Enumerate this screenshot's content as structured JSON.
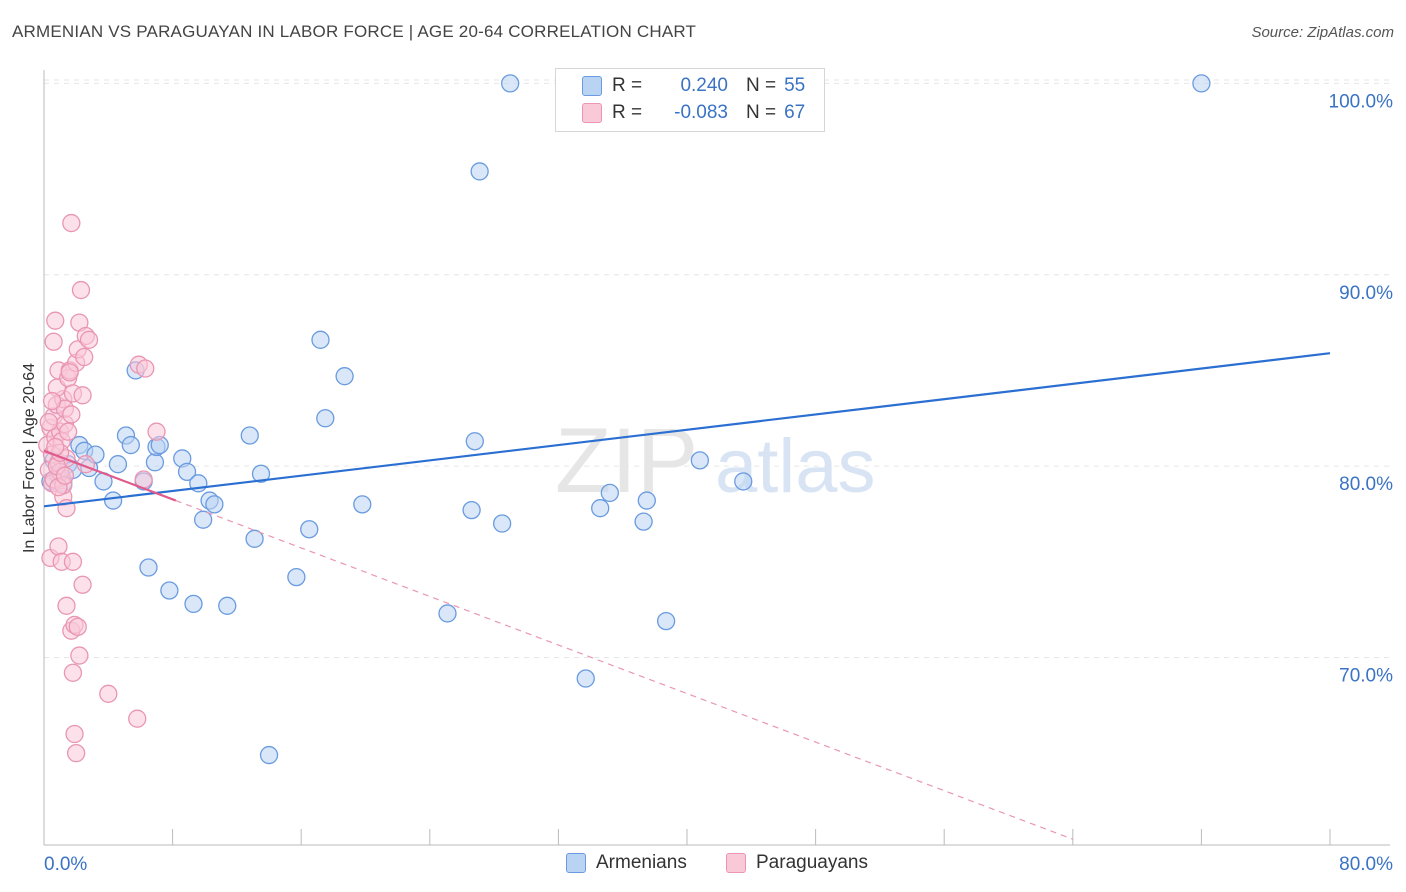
{
  "title": "ARMENIAN VS PARAGUAYAN IN LABOR FORCE | AGE 20-64 CORRELATION CHART",
  "source": "Source: ZipAtlas.com",
  "watermark": {
    "zip": "ZIP",
    "atlas": "atlas"
  },
  "legend": {
    "r_label": "R =",
    "n_label": "N =",
    "armenians": {
      "r": "0.240",
      "n": "55"
    },
    "paraguayans": {
      "r": "-0.083",
      "n": "67"
    }
  },
  "bottom_legend": {
    "armenians": "Armenians",
    "paraguayans": "Paraguayans"
  },
  "colors": {
    "blue_fill": "#b9d4f3",
    "blue_stroke": "#6a9be0",
    "blue_line": "#2a6fd1",
    "pink_fill": "#f9c9d8",
    "pink_stroke": "#e996b3",
    "pink_line": "#e05a8c",
    "tick_text": "#3a73c4",
    "grid": "#e6e6e6"
  },
  "chart_data": {
    "type": "scatter",
    "title": "ARMENIAN VS PARAGUAYAN IN LABOR FORCE | AGE 20-64 CORRELATION CHART",
    "xlabel": "",
    "ylabel": "In Labor Force | Age 20-64",
    "xlim": [
      0,
      80
    ],
    "ylim": [
      60.2,
      100.7
    ],
    "x_tick_labels": [
      "0.0%",
      "80.0%"
    ],
    "y_ticks": [
      70,
      80,
      90,
      100
    ],
    "y_tick_labels": [
      "70.0%",
      "80.0%",
      "90.0%",
      "100.0%"
    ],
    "legend_position": "top-center",
    "series": [
      {
        "name": "Armenians",
        "r": 0.24,
        "n": 55,
        "trend": {
          "x": [
            0,
            80
          ],
          "y": [
            77.9,
            85.9
          ]
        },
        "points": [
          [
            0.4,
            79.2
          ],
          [
            0.6,
            80.3
          ],
          [
            0.9,
            79.5
          ],
          [
            1.2,
            79.1
          ],
          [
            1.5,
            80.1
          ],
          [
            2.2,
            81.1
          ],
          [
            2.5,
            80.8
          ],
          [
            2.8,
            79.9
          ],
          [
            3.2,
            80.6
          ],
          [
            3.7,
            79.2
          ],
          [
            4.3,
            78.2
          ],
          [
            4.6,
            80.1
          ],
          [
            5.1,
            81.6
          ],
          [
            5.4,
            81.1
          ],
          [
            5.7,
            85.0
          ],
          [
            6.2,
            79.2
          ],
          [
            6.5,
            74.7
          ],
          [
            6.9,
            80.2
          ],
          [
            7.0,
            81.0
          ],
          [
            7.2,
            81.1
          ],
          [
            7.8,
            73.5
          ],
          [
            8.6,
            80.4
          ],
          [
            8.9,
            79.7
          ],
          [
            9.3,
            72.8
          ],
          [
            9.6,
            79.1
          ],
          [
            9.9,
            77.2
          ],
          [
            10.3,
            78.2
          ],
          [
            10.6,
            78.0
          ],
          [
            11.4,
            72.7
          ],
          [
            12.8,
            81.6
          ],
          [
            13.1,
            76.2
          ],
          [
            13.5,
            79.6
          ],
          [
            14.0,
            64.9
          ],
          [
            15.7,
            74.2
          ],
          [
            16.5,
            76.7
          ],
          [
            17.2,
            86.6
          ],
          [
            17.5,
            82.5
          ],
          [
            18.7,
            84.7
          ],
          [
            19.8,
            78.0
          ],
          [
            25.1,
            72.3
          ],
          [
            26.6,
            77.7
          ],
          [
            26.8,
            81.3
          ],
          [
            27.1,
            95.4
          ],
          [
            28.5,
            77.0
          ],
          [
            29.0,
            100.0
          ],
          [
            33.7,
            68.9
          ],
          [
            34.6,
            77.8
          ],
          [
            35.2,
            78.6
          ],
          [
            37.3,
            77.1
          ],
          [
            37.5,
            78.2
          ],
          [
            38.7,
            71.9
          ],
          [
            40.8,
            80.3
          ],
          [
            43.5,
            79.2
          ],
          [
            72.0,
            100.0
          ],
          [
            1.8,
            79.8
          ]
        ]
      },
      {
        "name": "Paraguayans",
        "r": -0.083,
        "n": 67,
        "trend_solid": {
          "x": [
            0,
            8.2
          ],
          "y": [
            80.8,
            78.2
          ]
        },
        "trend_dashed": {
          "x": [
            8.2,
            64.0
          ],
          "y": [
            78.2,
            60.5
          ]
        },
        "points": [
          [
            0.2,
            81.1
          ],
          [
            0.3,
            79.8
          ],
          [
            0.4,
            82.0
          ],
          [
            0.5,
            80.6
          ],
          [
            0.6,
            82.6
          ],
          [
            0.7,
            81.5
          ],
          [
            0.8,
            83.2
          ],
          [
            0.9,
            80.2
          ],
          [
            1.0,
            81.8
          ],
          [
            1.1,
            79.4
          ],
          [
            1.2,
            83.5
          ],
          [
            1.3,
            82.2
          ],
          [
            1.4,
            80.4
          ],
          [
            0.5,
            79.1
          ],
          [
            0.6,
            86.5
          ],
          [
            0.7,
            87.6
          ],
          [
            0.8,
            84.1
          ],
          [
            0.9,
            85.0
          ],
          [
            1.0,
            79.7
          ],
          [
            1.1,
            81.3
          ],
          [
            1.2,
            78.4
          ],
          [
            1.3,
            83.0
          ],
          [
            1.4,
            77.8
          ],
          [
            1.5,
            84.6
          ],
          [
            1.6,
            85.0
          ],
          [
            1.7,
            82.7
          ],
          [
            1.8,
            83.8
          ],
          [
            2.0,
            85.4
          ],
          [
            2.1,
            86.1
          ],
          [
            2.2,
            87.5
          ],
          [
            2.3,
            89.2
          ],
          [
            2.4,
            83.7
          ],
          [
            2.5,
            85.7
          ],
          [
            2.6,
            86.8
          ],
          [
            2.8,
            86.6
          ],
          [
            1.7,
            92.7
          ],
          [
            0.4,
            75.2
          ],
          [
            0.9,
            75.8
          ],
          [
            1.1,
            75.0
          ],
          [
            1.4,
            72.7
          ],
          [
            1.7,
            71.4
          ],
          [
            1.9,
            71.7
          ],
          [
            2.1,
            71.6
          ],
          [
            2.4,
            73.8
          ],
          [
            1.8,
            75.0
          ],
          [
            2.2,
            70.1
          ],
          [
            1.8,
            69.2
          ],
          [
            1.9,
            66.0
          ],
          [
            2.0,
            65.0
          ],
          [
            4.0,
            68.1
          ],
          [
            5.8,
            66.8
          ],
          [
            6.2,
            79.3
          ],
          [
            5.9,
            85.3
          ],
          [
            6.3,
            85.1
          ],
          [
            7.0,
            81.8
          ],
          [
            0.6,
            79.3
          ],
          [
            0.8,
            80.0
          ],
          [
            1.0,
            80.7
          ],
          [
            1.2,
            79.0
          ],
          [
            0.7,
            81.0
          ],
          [
            1.5,
            81.8
          ],
          [
            0.5,
            83.4
          ],
          [
            0.9,
            78.9
          ],
          [
            1.3,
            79.5
          ],
          [
            2.6,
            80.1
          ],
          [
            0.3,
            82.3
          ],
          [
            1.6,
            84.9
          ]
        ]
      }
    ]
  }
}
